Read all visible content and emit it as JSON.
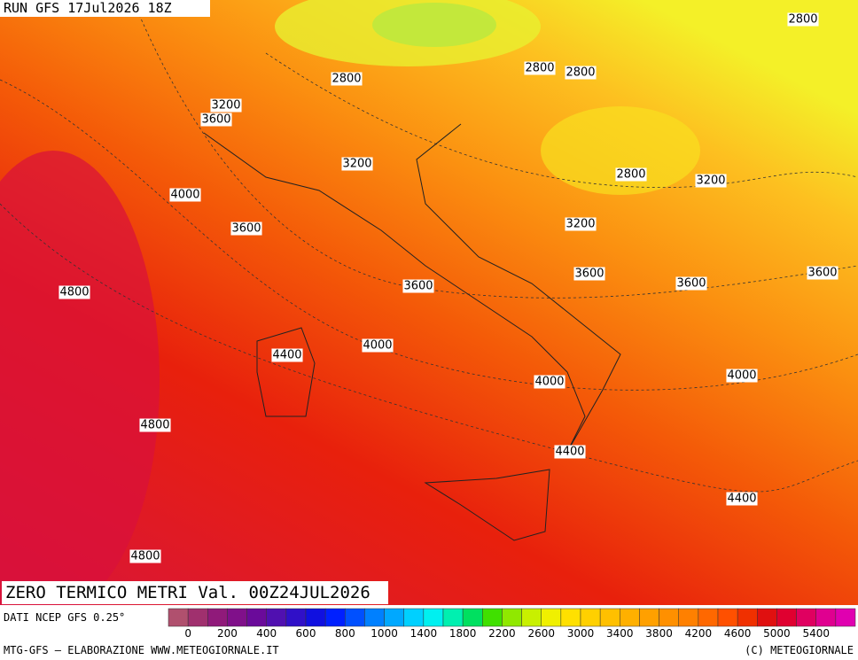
{
  "header": {
    "run": "RUN GFS 17Jul2026 18Z"
  },
  "contour_labels": [
    "2800",
    "2800",
    "2800",
    "2800",
    "3200",
    "3600",
    "3200",
    "2800",
    "3200",
    "4000",
    "3200",
    "3600",
    "3600",
    "3600",
    "3600",
    "3600",
    "4800",
    "4000",
    "4400",
    "4000",
    "4000",
    "4800",
    "4400",
    "4400",
    "4800"
  ],
  "footer": {
    "title": "ZERO TERMICO METRI Val. 00Z24JUL2026",
    "source": "DATI NCEP GFS 0.25°",
    "credit": "MTG-GFS — ELABORAZIONE WWW.METEOGIORNALE.IT",
    "copyright": "(C) METEOGIORNALE"
  },
  "colorbar": {
    "labels": [
      "0",
      "200",
      "400",
      "600",
      "800",
      "1000",
      "1400",
      "1800",
      "2200",
      "2600",
      "3000",
      "3400",
      "3800",
      "4200",
      "4600",
      "5000",
      "5400"
    ],
    "colors": [
      "#b0506e",
      "#a0306e",
      "#901a7a",
      "#80108a",
      "#6a0a9a",
      "#5010b0",
      "#3010c8",
      "#1010e0",
      "#0020ff",
      "#0050ff",
      "#0080ff",
      "#00a8ff",
      "#00d0ff",
      "#00f0f0",
      "#00f0b0",
      "#00e060",
      "#40e000",
      "#90e800",
      "#c8f000",
      "#f0f000",
      "#ffe000",
      "#ffd000",
      "#ffc000",
      "#ffb000",
      "#ffa000",
      "#ff9000",
      "#ff8000",
      "#ff6800",
      "#ff5000",
      "#f03000",
      "#e01010",
      "#e00030",
      "#e00060",
      "#e00090",
      "#e000b0"
    ]
  }
}
